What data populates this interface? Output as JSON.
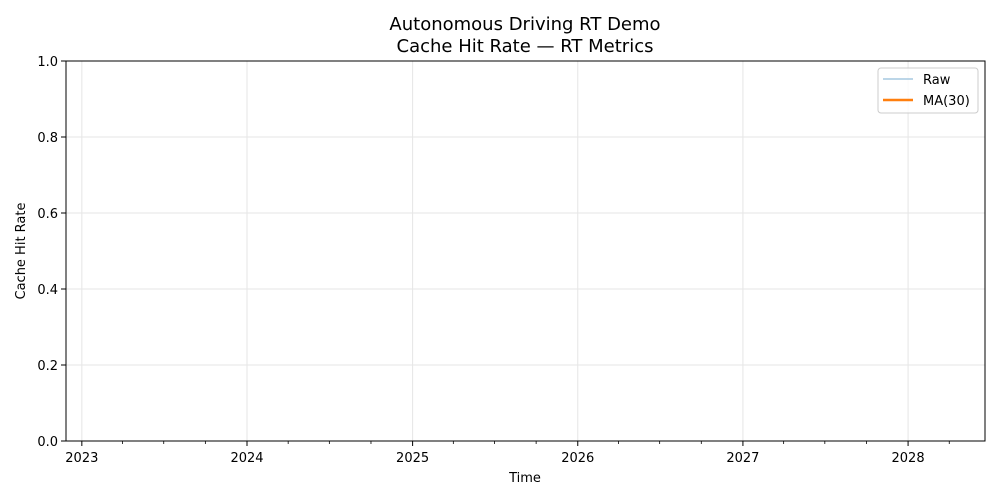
{
  "chart_data": {
    "type": "line",
    "title_line1": "Autonomous Driving RT Demo",
    "title_line2": "Cache Hit Rate — RT Metrics",
    "xlabel": "Time",
    "ylabel": "Cache Hit Rate",
    "xlim": [
      "2022-11-27",
      "2028-06-19"
    ],
    "ylim": [
      0,
      1
    ],
    "x_ticks": [
      {
        "date": "2023-01-01",
        "label": "2023"
      },
      {
        "date": "2024-01-01",
        "label": "2024"
      },
      {
        "date": "2025-01-01",
        "label": "2025"
      },
      {
        "date": "2026-01-01",
        "label": "2026"
      },
      {
        "date": "2027-01-01",
        "label": "2027"
      },
      {
        "date": "2028-01-01",
        "label": "2028"
      }
    ],
    "y_ticks": [
      {
        "value": 0.0,
        "label": "0.0"
      },
      {
        "value": 0.2,
        "label": "0.2"
      },
      {
        "value": 0.4,
        "label": "0.4"
      },
      {
        "value": 0.6,
        "label": "0.6"
      },
      {
        "value": 0.8,
        "label": "0.8"
      },
      {
        "value": 1.0,
        "label": "1.0"
      }
    ],
    "grid": true,
    "legend_position": "top-right",
    "series": [
      {
        "name": "Raw",
        "color": "#a6c8e0",
        "values": []
      },
      {
        "name": "MA(30)",
        "color": "#ff7f0e",
        "values": []
      }
    ]
  }
}
